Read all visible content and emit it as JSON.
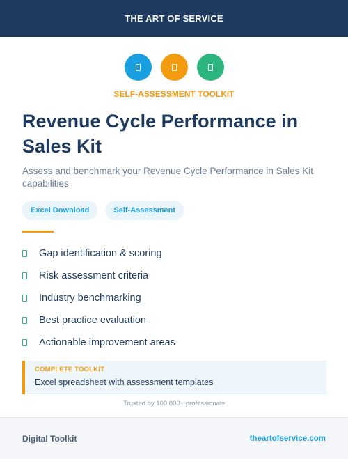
{
  "colors": {
    "navy": "#1e3a5f",
    "blue": "#1a9fe0",
    "orange": "#f39c12",
    "green": "#2cb67d",
    "muted": "#6b7c93"
  },
  "header": {
    "title": "THE ART OF SERVICE"
  },
  "icons": [
    {
      "name": "document-icon",
      "color": "#1a9fe0"
    },
    {
      "name": "document-icon",
      "color": "#f39c12"
    },
    {
      "name": "document-icon",
      "color": "#2cb67d"
    }
  ],
  "eyebrow": "SELF-ASSESSMENT TOOLKIT",
  "title": "Revenue Cycle Performance in Sales Kit",
  "subtitle": "Assess and benchmark your Revenue Cycle Performance in Sales Kit capabilities",
  "tags": [
    "Excel Download",
    "Self-Assessment"
  ],
  "features": [
    "Gap identification & scoring",
    "Risk assessment criteria",
    "Industry benchmarking",
    "Best practice evaluation",
    "Actionable improvement areas"
  ],
  "callout": {
    "label": "COMPLETE TOOLKIT",
    "text": "Excel spreadsheet with assessment templates"
  },
  "trusted": "Trusted by 100,000+ professionals",
  "footer": {
    "left": "Digital Toolkit",
    "right": "theartofservice.com"
  }
}
